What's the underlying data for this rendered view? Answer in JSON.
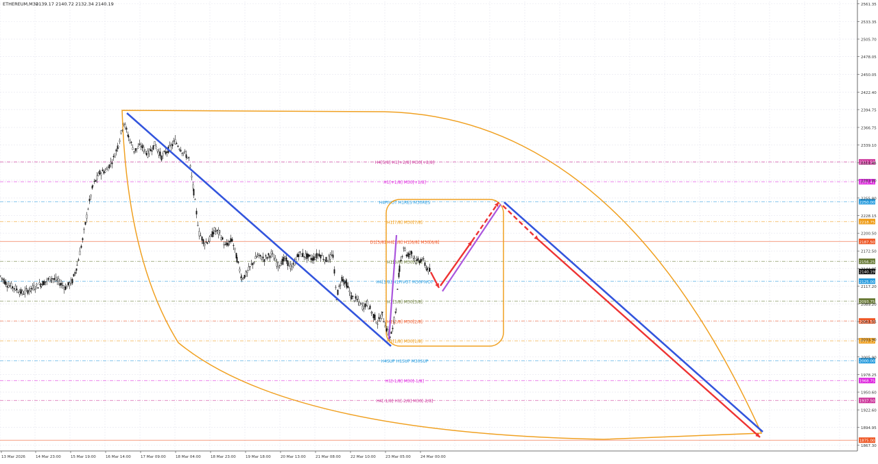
{
  "header": {
    "symbol": "ETHEREUM,M30",
    "ohlc": "2139.17 2140.72 2132.34 2140.19"
  },
  "chart_data": {
    "type": "candlestick",
    "ylim": [
      1858,
      2565
    ],
    "price_ticks": [
      "2561.35",
      "2533.35",
      "2505.70",
      "2478.05",
      "2450.05",
      "2422.40",
      "2394.75",
      "2366.75",
      "2339.10",
      "2311.45",
      "2283.80",
      "2255.80",
      "2228.15",
      "2200.50",
      "2172.50",
      "2144.85",
      "2117.20",
      "2089.20",
      "2061.55",
      "2033.90",
      "2005.90",
      "1978.25",
      "1950.60",
      "1922.60",
      "1894.95",
      "1867.30"
    ],
    "time_ticks": [
      "13 Mar 2026",
      "14 Mar 23:00",
      "15 Mar 19:00",
      "16 Mar 14:00",
      "17 Mar 09:00",
      "18 Mar 04:00",
      "18 Mar 23:00",
      "19 Mar 18:00",
      "20 Mar 13:00",
      "21 Mar 08:00",
      "22 Mar 10:00",
      "23 Mar 05:00",
      "24 Mar 00:00"
    ],
    "price_path": [
      [
        0,
        2133
      ],
      [
        10,
        2120
      ],
      [
        20,
        2115
      ],
      [
        32,
        2106
      ],
      [
        45,
        2113
      ],
      [
        60,
        2121
      ],
      [
        75,
        2130
      ],
      [
        85,
        2124
      ],
      [
        95,
        2115
      ],
      [
        105,
        2125
      ],
      [
        112,
        2150
      ],
      [
        120,
        2190
      ],
      [
        128,
        2240
      ],
      [
        135,
        2275
      ],
      [
        145,
        2295
      ],
      [
        155,
        2300
      ],
      [
        165,
        2318
      ],
      [
        172,
        2340
      ],
      [
        180,
        2375
      ],
      [
        187,
        2352
      ],
      [
        195,
        2330
      ],
      [
        205,
        2338
      ],
      [
        215,
        2325
      ],
      [
        225,
        2340
      ],
      [
        235,
        2320
      ],
      [
        245,
        2332
      ],
      [
        255,
        2345
      ],
      [
        265,
        2330
      ],
      [
        275,
        2318
      ],
      [
        282,
        2265
      ],
      [
        290,
        2200
      ],
      [
        298,
        2185
      ],
      [
        305,
        2190
      ],
      [
        312,
        2205
      ],
      [
        320,
        2200
      ],
      [
        328,
        2180
      ],
      [
        338,
        2190
      ],
      [
        345,
        2160
      ],
      [
        352,
        2130
      ],
      [
        358,
        2135
      ],
      [
        366,
        2150
      ],
      [
        375,
        2165
      ],
      [
        385,
        2160
      ],
      [
        395,
        2168
      ],
      [
        405,
        2150
      ],
      [
        415,
        2160
      ],
      [
        425,
        2145
      ],
      [
        435,
        2168
      ],
      [
        445,
        2165
      ],
      [
        455,
        2160
      ],
      [
        465,
        2168
      ],
      [
        475,
        2158
      ],
      [
        485,
        2165
      ],
      [
        490,
        2100
      ],
      [
        498,
        2130
      ],
      [
        505,
        2120
      ],
      [
        512,
        2100
      ],
      [
        520,
        2095
      ],
      [
        528,
        2085
      ],
      [
        535,
        2090
      ],
      [
        542,
        2075
      ],
      [
        550,
        2060
      ],
      [
        557,
        2072
      ],
      [
        563,
        2050
      ],
      [
        568,
        2038
      ],
      [
        572,
        2048
      ],
      [
        577,
        2085
      ],
      [
        582,
        2145
      ],
      [
        588,
        2180
      ],
      [
        593,
        2165
      ],
      [
        600,
        2170
      ],
      [
        607,
        2155
      ],
      [
        615,
        2160
      ],
      [
        622,
        2145
      ],
      [
        627,
        2140
      ]
    ],
    "levels": [
      {
        "label": "H4[5/8] H1[+2/8] M30[+2/8]",
        "price": "2312.58",
        "color": "#cc3399"
      },
      {
        "label": "H1[+1/8] M30[+1/8]",
        "price": "2281.41",
        "color": "#dd22dd"
      },
      {
        "label": "H4PIVOT H1RES M30RES",
        "price": "2250.00",
        "color": "#2299dd"
      },
      {
        "label": "H1[7/8] M30[7/8]",
        "price": "2218.75",
        "color": "#ee9911"
      },
      {
        "label": "D1[5/8] H4[3/8] H1[6/8] M30[6/8]",
        "price": "2187.50",
        "color": "#ee5522"
      },
      {
        "label": "H1[5/8] M30[5/8]",
        "price": "2156.25",
        "color": "#667733"
      },
      {
        "label": "H4[1/8] H1PIVOT M30PIVOT",
        "price": "2125.00",
        "color": "#2299dd"
      },
      {
        "label": "H1[3/8] M30[3/8]",
        "price": "2093.75",
        "color": "#667733"
      },
      {
        "label": "H1[2/8] M30[2/8]",
        "price": "2062.50",
        "color": "#ee5522"
      },
      {
        "label": "H1[1/8] M30[1/8]",
        "price": "2031.25",
        "color": "#ee9911"
      },
      {
        "label": "H4SUP H1SUP M30SUP",
        "price": "2000.00",
        "color": "#2299dd"
      },
      {
        "label": "H1[-1/8] M30[-1/8]",
        "price": "1968.75",
        "color": "#dd22dd"
      },
      {
        "label": "H4[-1/8] H1[-2/8] M30[-2/8]",
        "price": "1937.50",
        "color": "#cc3399"
      },
      {
        "label": "",
        "price": "1875.00",
        "color": "#ee5522"
      }
    ],
    "current_price": "2140.19"
  },
  "colors": {
    "trend_line": "#3355dd",
    "forecast_arrow": "#ee3333",
    "channel": "#aa55dd",
    "ellipse": "#f0a020",
    "grid": "#e4e4ee"
  }
}
